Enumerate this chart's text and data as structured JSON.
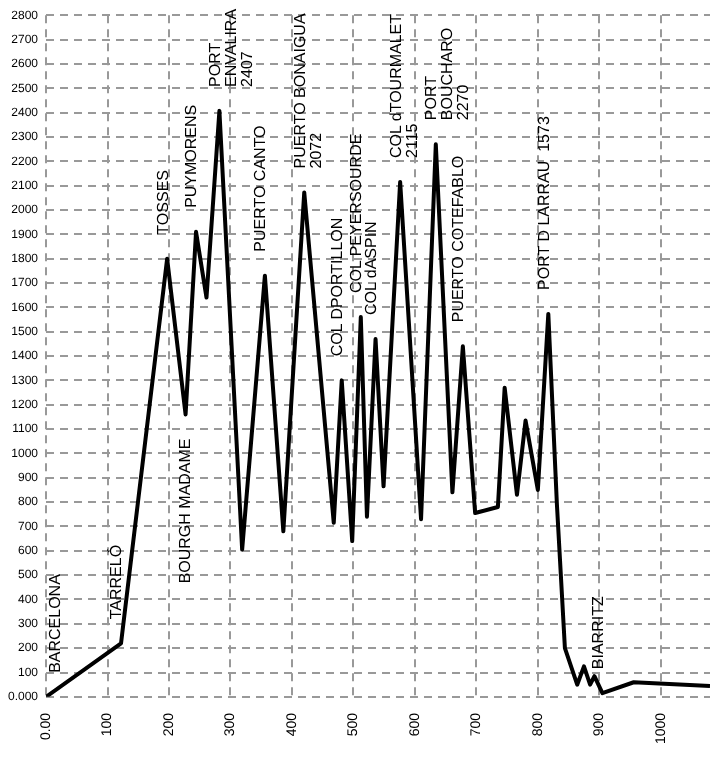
{
  "chart_data": {
    "type": "line",
    "color": "#000000",
    "marker": "none",
    "grid": true,
    "legend": false,
    "x": [
      0,
      122,
      197,
      227,
      244,
      261,
      282,
      319,
      356,
      386,
      420,
      468,
      481,
      498,
      512,
      522,
      536,
      549,
      576,
      610,
      634,
      661,
      678,
      698,
      735,
      746,
      766,
      780,
      800,
      817,
      831,
      844,
      864,
      875,
      885,
      892,
      905,
      956,
      1080
    ],
    "values": [
      0,
      220,
      1800,
      1160,
      1910,
      1640,
      2407,
      605,
      1730,
      680,
      2072,
      715,
      1300,
      640,
      1560,
      740,
      1470,
      865,
      2115,
      730,
      2270,
      840,
      1440,
      755,
      780,
      1270,
      830,
      1135,
      850,
      1573,
      790,
      200,
      50,
      125,
      50,
      85,
      15,
      60,
      45
    ],
    "xlim": [
      0,
      1080
    ],
    "ylim": [
      0,
      2800
    ],
    "xticks": [
      {
        "value": 0,
        "label": "0.00"
      },
      100,
      200,
      300,
      400,
      500,
      600,
      700,
      800,
      900,
      1000
    ],
    "yticks": [
      {
        "value": 0,
        "label": "0.000"
      },
      100,
      200,
      300,
      400,
      500,
      600,
      700,
      800,
      900,
      1000,
      1100,
      1200,
      1300,
      1400,
      1500,
      1600,
      1700,
      1800,
      1900,
      2000,
      2100,
      2200,
      2300,
      2400,
      2500,
      2600,
      2700,
      2800
    ],
    "annotations": [
      {
        "text": "BARCELONA",
        "x": 0,
        "y": 0
      },
      {
        "text": "TARRELÓ",
        "x": 122,
        "y": 220
      },
      {
        "text": "TOSSES",
        "x": 197,
        "y": 1800
      },
      {
        "text": "BOURGH MADAME",
        "x": 227,
        "y": 1160
      },
      {
        "text": "PUYMORENS",
        "x": 244,
        "y": 1910
      },
      {
        "text": "PORT\nENVALIRA\n2407",
        "x": 282,
        "y": 2407
      },
      {
        "text": "PUERTO CANTO",
        "x": 356,
        "y": 1730
      },
      {
        "text": "PUERTO BONAIGUA\n2072",
        "x": 420,
        "y": 2072
      },
      {
        "text": "COL DPORTILLON",
        "x": 481,
        "y": 1300
      },
      {
        "text": "COL PEYERSOURDE",
        "x": 512,
        "y": 1560
      },
      {
        "text": "COL dASPIN",
        "x": 536,
        "y": 1470
      },
      {
        "text": "COL dTOURMALET\n2115",
        "x": 576,
        "y": 2115
      },
      {
        "text": "PORT\nBOUCHARO\n2270",
        "x": 634,
        "y": 2270
      },
      {
        "text": "PUERTO COTEFABLO",
        "x": 678,
        "y": 1440
      },
      {
        "text": "PORT D LARRAU  1573",
        "x": 817,
        "y": 1573
      },
      {
        "text": "BIARRITZ",
        "x": 905,
        "y": 15
      }
    ]
  }
}
